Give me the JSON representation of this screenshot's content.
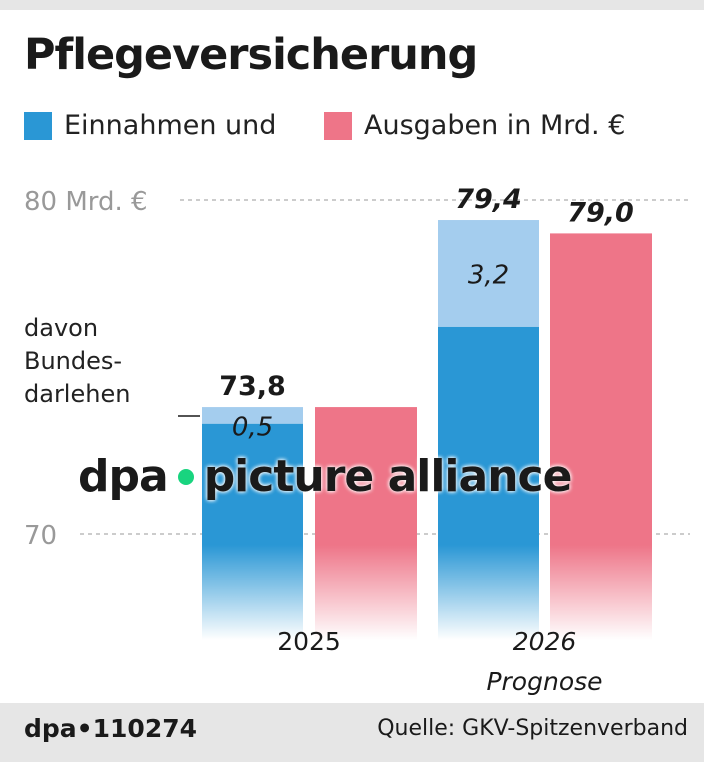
{
  "title": "Pflegeversicherung",
  "legend": [
    {
      "label": "Einnahmen und",
      "color": "#2a97d5"
    },
    {
      "label": "Ausgaben in Mrd. €",
      "color": "#ee7588"
    }
  ],
  "note": "davon Bundes-darlehen",
  "watermark": "dpa picture alliance",
  "footer": {
    "logo": "dpa•110274",
    "source": "Quelle: GKV-Spitzenverband"
  },
  "chart_data": {
    "type": "bar",
    "categories": [
      "2025",
      "2026"
    ],
    "category_sublabels": [
      "",
      "Prognose"
    ],
    "ylim": [
      66,
      80
    ],
    "yticks": [
      {
        "value": 80,
        "label": "80 Mrd. €"
      },
      {
        "value": 70,
        "label": "70"
      }
    ],
    "grid": true,
    "series": [
      {
        "name": "Einnahmen",
        "color": "#2a97d5",
        "loan_color": "#a4cdee",
        "totals": [
          73.8,
          79.4
        ],
        "total_labels": [
          "73,8",
          "79,4"
        ],
        "loan": [
          0.5,
          3.2
        ],
        "loan_labels": [
          "0,5",
          "3,2"
        ]
      },
      {
        "name": "Ausgaben",
        "color": "#ee7588",
        "totals": [
          73.8,
          79.0
        ],
        "total_labels": [
          "",
          "79,0"
        ]
      }
    ]
  }
}
